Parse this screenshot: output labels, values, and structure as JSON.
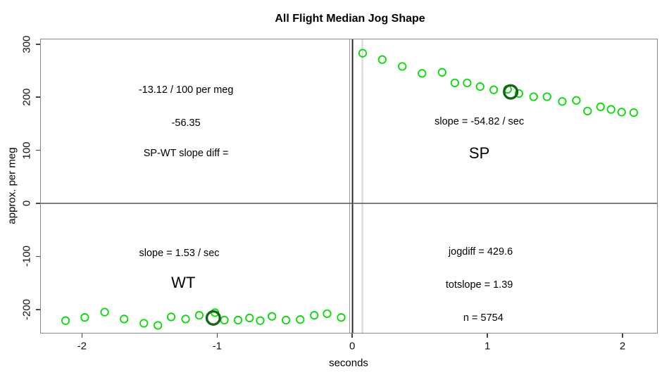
{
  "chart_data": {
    "type": "scatter",
    "title": "All Flight Median Jog Shape",
    "xlabel": "seconds",
    "ylabel": "approx. per meg",
    "xlim": [
      -2.304,
      2.255
    ],
    "ylim": [
      -244,
      309
    ],
    "x_ticks": [
      -2,
      -1,
      0,
      1,
      2
    ],
    "y_ticks": [
      -200,
      -100,
      0,
      100,
      200,
      300
    ],
    "grid": false,
    "legend": "none",
    "marker": "open-circle",
    "series": [
      {
        "name": "WT",
        "color": "#00DC00",
        "points": [
          [
            -2.121,
            -221
          ],
          [
            -1.979,
            -215
          ],
          [
            -1.832,
            -205
          ],
          [
            -1.688,
            -218
          ],
          [
            -1.542,
            -226
          ],
          [
            -1.438,
            -230
          ],
          [
            -1.34,
            -214
          ],
          [
            -1.233,
            -218
          ],
          [
            -1.132,
            -211
          ],
          [
            -1.016,
            -206
          ],
          [
            -0.946,
            -220
          ],
          [
            -0.845,
            -220
          ],
          [
            -0.76,
            -216
          ],
          [
            -0.681,
            -221
          ],
          [
            -0.594,
            -213
          ],
          [
            -0.49,
            -220
          ],
          [
            -0.385,
            -219
          ],
          [
            -0.281,
            -211
          ],
          [
            -0.186,
            -208
          ],
          [
            -0.082,
            -215
          ]
        ]
      },
      {
        "name": "SP",
        "color": "#00DC00",
        "points": [
          [
            0.077,
            283
          ],
          [
            0.222,
            271
          ],
          [
            0.37,
            258
          ],
          [
            0.516,
            245
          ],
          [
            0.665,
            247
          ],
          [
            0.759,
            227
          ],
          [
            0.85,
            227
          ],
          [
            0.946,
            220
          ],
          [
            1.047,
            214
          ],
          [
            1.149,
            215
          ],
          [
            1.233,
            207
          ],
          [
            1.342,
            201
          ],
          [
            1.441,
            201
          ],
          [
            1.554,
            192
          ],
          [
            1.658,
            194
          ],
          [
            1.741,
            174
          ],
          [
            1.837,
            182
          ],
          [
            1.915,
            177
          ],
          [
            1.993,
            172
          ],
          [
            2.083,
            171
          ]
        ]
      }
    ],
    "highlight_points": [
      {
        "series": "WT",
        "x": -1.028,
        "y": -216
      },
      {
        "series": "SP",
        "x": 1.172,
        "y": 210
      }
    ],
    "highlight_color": "#146414",
    "reference_lines": {
      "horizontal": [
        {
          "y": 0,
          "color": "#555555",
          "width": 1.5
        }
      ],
      "vertical": [
        {
          "x": -0.019,
          "color": "#999999",
          "width": 1
        },
        {
          "x": 0.002,
          "color": "#2b2b2b",
          "width": 2
        },
        {
          "x": 0.075,
          "color": "#d4d4d4",
          "width": 2
        }
      ]
    },
    "annotations": [
      {
        "text": "-13.12 / 100 per meg",
        "x": -1.23,
        "y": 214,
        "size": "normal"
      },
      {
        "text": "-56.35",
        "x": -1.23,
        "y": 151,
        "size": "normal"
      },
      {
        "text": "SP-WT slope diff =",
        "x": -1.23,
        "y": 94,
        "size": "normal"
      },
      {
        "text": "slope = -54.82 / sec",
        "x": 0.94,
        "y": 154,
        "size": "normal"
      },
      {
        "text": "SP",
        "x": 0.94,
        "y": 94,
        "size": "large"
      },
      {
        "text": "slope = 1.53 / sec",
        "x": -1.28,
        "y": -94,
        "size": "normal"
      },
      {
        "text": "WT",
        "x": -1.25,
        "y": -150,
        "size": "large"
      },
      {
        "text": "jogdiff = 429.6",
        "x": 0.95,
        "y": -92,
        "size": "normal"
      },
      {
        "text": "totslope = 1.39",
        "x": 0.94,
        "y": -154,
        "size": "normal"
      },
      {
        "text": "n = 5754",
        "x": 0.97,
        "y": -216,
        "size": "normal"
      }
    ]
  }
}
